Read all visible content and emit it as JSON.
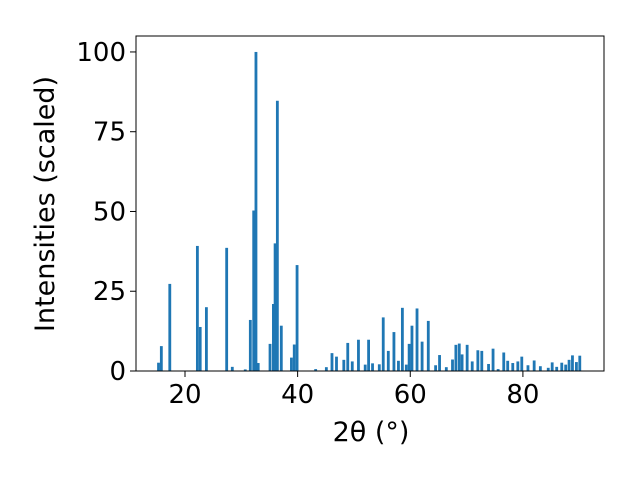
{
  "chart_data": {
    "type": "bar",
    "xlabel": "2θ (°)",
    "ylabel": "Intensities (scaled)",
    "xlim": [
      11.3,
      94.4
    ],
    "ylim": [
      0,
      105
    ],
    "xticks": [
      20,
      40,
      60,
      80
    ],
    "yticks": [
      0,
      25,
      50,
      75,
      100
    ],
    "bar_color": "#1f77b4",
    "grid": false,
    "x": [
      15.3,
      15.8,
      17.3,
      22.2,
      22.7,
      23.8,
      27.4,
      28.4,
      30.7,
      31.6,
      32.2,
      32.6,
      33.0,
      35.1,
      35.7,
      36.0,
      36.4,
      37.1,
      38.9,
      39.4,
      39.9,
      43.2,
      45.1,
      46.1,
      46.9,
      48.2,
      48.9,
      49.7,
      50.8,
      52.0,
      52.6,
      53.3,
      54.5,
      55.2,
      56.1,
      57.1,
      57.9,
      58.6,
      59.3,
      59.8,
      60.3,
      61.2,
      62.1,
      63.2,
      64.5,
      65.2,
      66.4,
      67.5,
      68.1,
      68.7,
      69.2,
      70.1,
      71.0,
      72.0,
      72.7,
      73.9,
      74.7,
      75.6,
      76.6,
      77.3,
      78.2,
      79.1,
      79.8,
      80.9,
      82.0,
      83.1,
      84.5,
      85.2,
      86.0,
      86.9,
      87.6,
      88.2,
      88.8,
      89.5,
      90.1
    ],
    "values": [
      2.6,
      7.8,
      27.3,
      39.2,
      13.8,
      20.0,
      38.6,
      1.3,
      0.5,
      16.0,
      50.3,
      100.0,
      2.5,
      8.5,
      21.0,
      40.0,
      84.7,
      14.2,
      4.2,
      8.3,
      33.2,
      0.6,
      1.2,
      5.6,
      4.5,
      3.5,
      8.8,
      3.0,
      9.8,
      2.0,
      9.8,
      2.4,
      2.1,
      16.8,
      6.3,
      12.2,
      3.2,
      19.8,
      2.0,
      8.5,
      14.2,
      19.6,
      9.2,
      15.7,
      1.8,
      5.0,
      1.2,
      3.6,
      8.2,
      8.6,
      5.2,
      8.2,
      3.0,
      6.5,
      6.3,
      2.2,
      7.0,
      0.6,
      5.8,
      3.2,
      2.5,
      3.0,
      4.5,
      1.8,
      3.3,
      1.5,
      1.0,
      2.7,
      1.3,
      2.6,
      2.0,
      3.5,
      4.9,
      2.8,
      4.8
    ]
  }
}
